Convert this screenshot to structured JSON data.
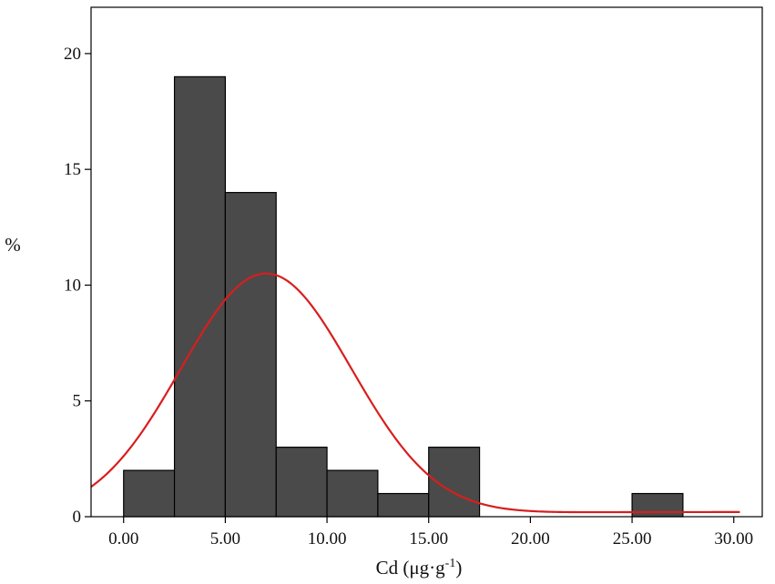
{
  "chart_data": {
    "type": "bar",
    "bins": [
      {
        "x0": 0.0,
        "x1": 2.5,
        "value": 2
      },
      {
        "x0": 2.5,
        "x1": 5.0,
        "value": 19
      },
      {
        "x0": 5.0,
        "x1": 7.5,
        "value": 14
      },
      {
        "x0": 7.5,
        "x1": 10.0,
        "value": 3
      },
      {
        "x0": 10.0,
        "x1": 12.5,
        "value": 2
      },
      {
        "x0": 12.5,
        "x1": 15.0,
        "value": 1
      },
      {
        "x0": 15.0,
        "x1": 17.5,
        "value": 3
      },
      {
        "x0": 25.0,
        "x1": 27.5,
        "value": 1
      }
    ],
    "xlabel": "Cd (μg·g",
    "xlabel_sup": "-1",
    "xlabel_close": ")",
    "ylabel": "%",
    "xlim": [
      -1.6,
      31.4
    ],
    "ylim": [
      0,
      22
    ],
    "xticks": [
      0,
      5,
      10,
      15,
      20,
      25,
      30
    ],
    "xtick_labels": [
      "0.00",
      "5.00",
      "10.00",
      "15.00",
      "20.00",
      "25.00",
      "30.00"
    ],
    "yticks": [
      0,
      5,
      10,
      15,
      20
    ],
    "ytick_labels": [
      "0",
      "5",
      "10",
      "15",
      "20"
    ],
    "curve": {
      "type": "normal-fit",
      "mean": 7.0,
      "sd": 4.2,
      "peak": 10.5,
      "x_range": [
        -1.6,
        30.3
      ],
      "color": "#d81e1e"
    },
    "bar_color": "#4a4a4a",
    "bar_edge": "#000000",
    "grid": false
  }
}
